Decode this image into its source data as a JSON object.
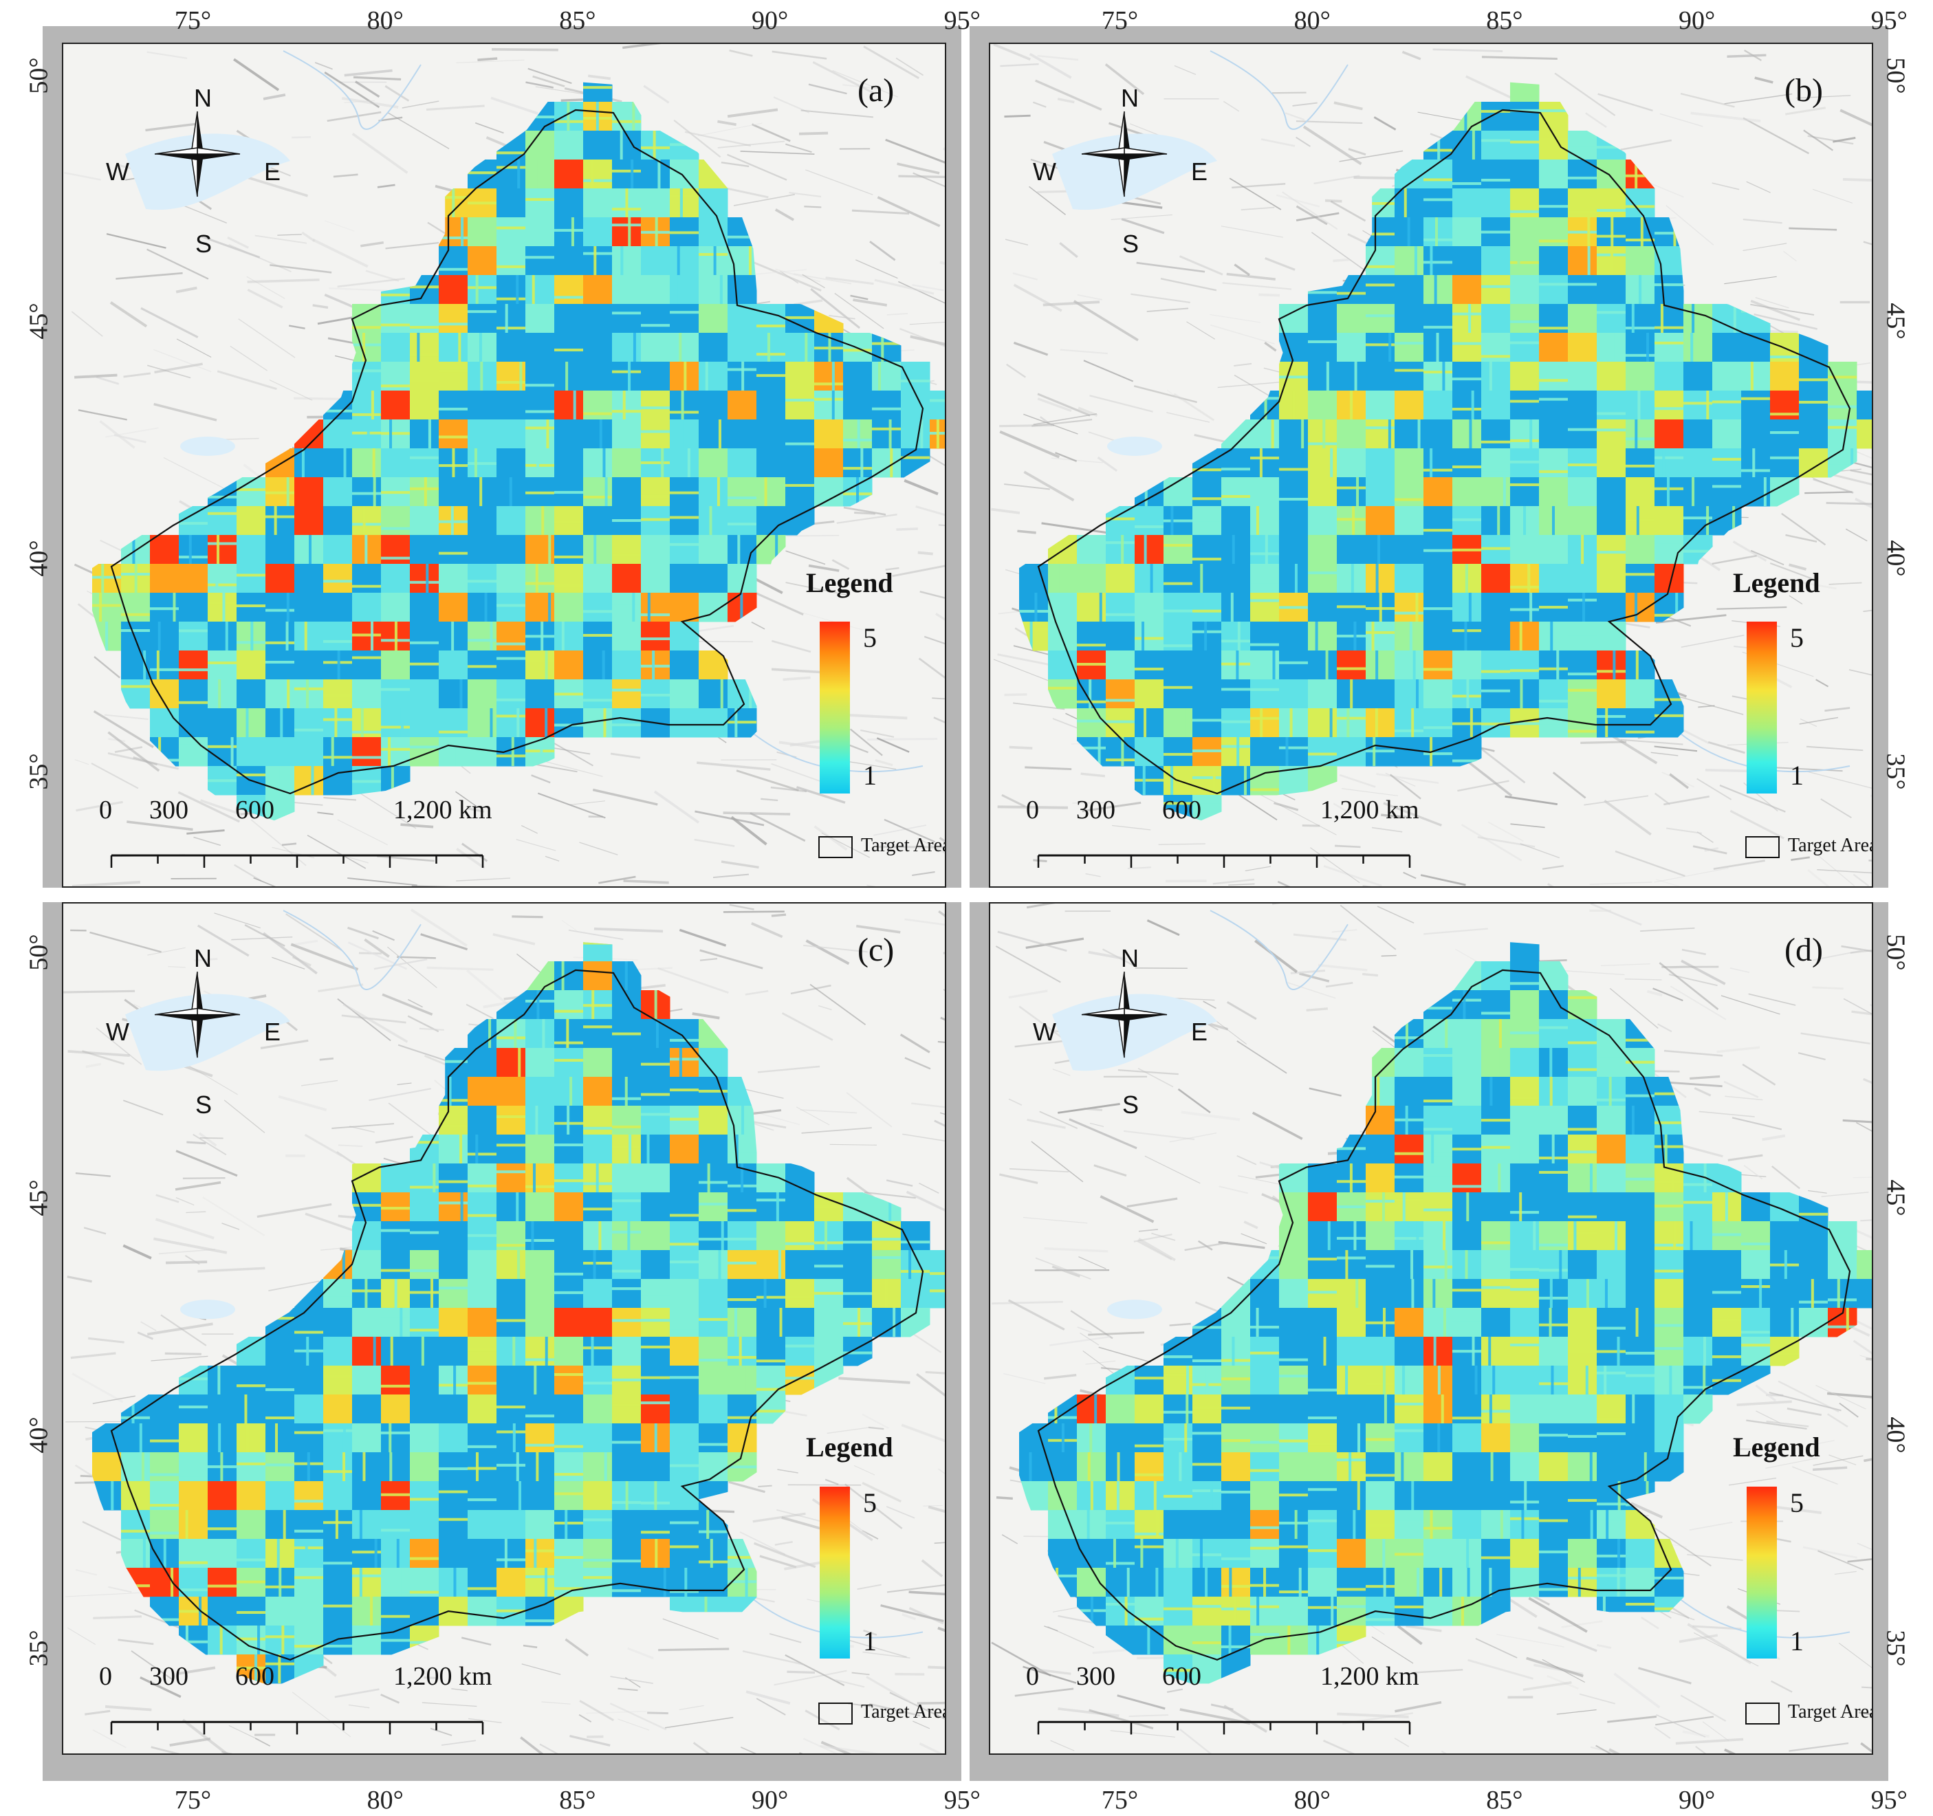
{
  "figure": {
    "panels": [
      {
        "id": "a",
        "label": "(a)"
      },
      {
        "id": "b",
        "label": "(b)"
      },
      {
        "id": "c",
        "label": "(c)"
      },
      {
        "id": "d",
        "label": "(d)"
      }
    ],
    "longitude_ticks": [
      "75°",
      "80°",
      "85°",
      "90°",
      "95°"
    ],
    "latitude_ticks": [
      "50°",
      "45°",
      "40°",
      "35°"
    ],
    "compass": {
      "n": "N",
      "s": "S",
      "e": "E",
      "w": "W"
    },
    "legend": {
      "title": "Legend",
      "max": "5",
      "min": "1",
      "target_area": "Target Area"
    },
    "scale_bar": {
      "labels": [
        "0",
        "300",
        "600",
        "1,200 km"
      ]
    },
    "colors": {
      "low": "#12c7ee",
      "mid": "#f6e43a",
      "high": "#ff2a0f",
      "frame_gray": "#b6b6b6"
    }
  }
}
